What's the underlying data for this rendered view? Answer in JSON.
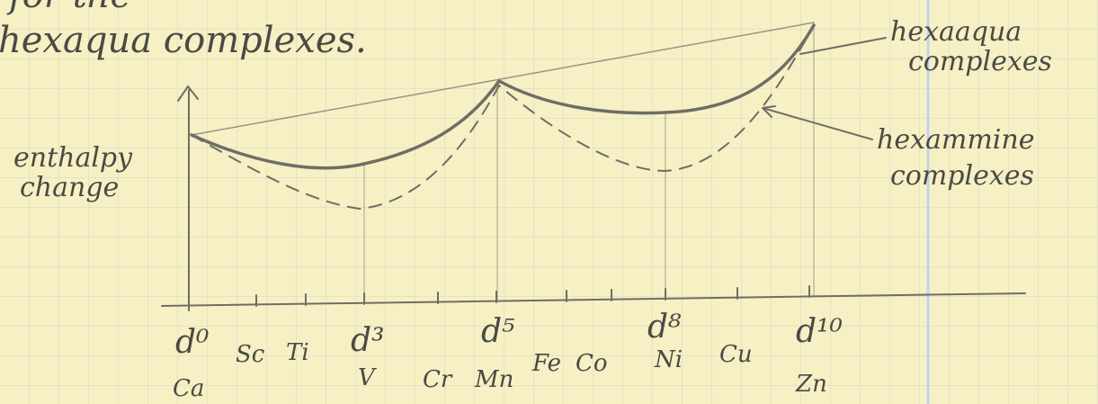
{
  "heading": {
    "line1": "for the",
    "line2": "hexaqua complexes."
  },
  "y_axis_label": {
    "line1": "enthalpy",
    "line2": "change"
  },
  "curve_labels": [
    {
      "line1": "hexaaqua",
      "line2": "complexes"
    },
    {
      "line1": "hexammine",
      "line2": "complexes"
    }
  ],
  "x_labels": [
    {
      "config": "d⁰",
      "element": "Ca"
    },
    {
      "element": "Sc"
    },
    {
      "element": "Ti"
    },
    {
      "config": "d³",
      "element": "V"
    },
    {
      "element": "Cr"
    },
    {
      "config": "d⁵",
      "element": "Mn"
    },
    {
      "element": "Fe"
    },
    {
      "element": "Co"
    },
    {
      "config": "d⁸",
      "element": "Ni"
    },
    {
      "element": "Cu"
    },
    {
      "config": "d¹⁰",
      "element": "Zn"
    }
  ]
}
